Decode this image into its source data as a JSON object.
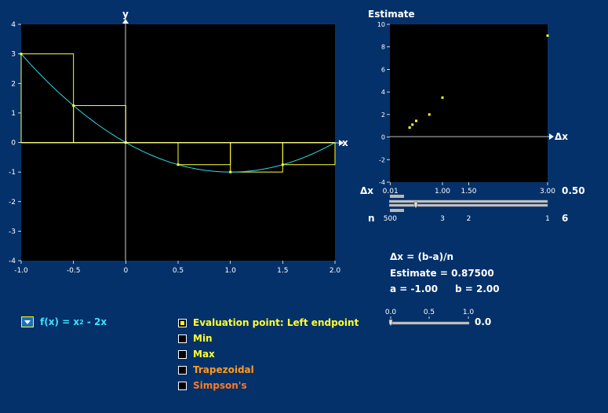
{
  "main_plot": {
    "x_axis_label": "x",
    "y_axis_label": "y",
    "x_ticks": [
      "-1.0",
      "-0.5",
      "0",
      "0.5",
      "1.0",
      "1.5",
      "2.0"
    ],
    "y_ticks": [
      "4",
      "3",
      "2",
      "1",
      "0",
      "-1",
      "-2",
      "-3",
      "-4"
    ],
    "curve_color": "#30d8e8",
    "rect_color": "#ffff30"
  },
  "chart_data": {
    "type": "line",
    "function": "x^2 - 2x",
    "xlim": [
      -1,
      2
    ],
    "ylim": [
      -4,
      4
    ],
    "rectangles": [
      {
        "x0": -1.0,
        "x1": -0.5,
        "height": 3.0
      },
      {
        "x0": -0.5,
        "x1": 0.0,
        "height": 1.25
      },
      {
        "x0": 0.0,
        "x1": 0.5,
        "height": 0.0
      },
      {
        "x0": 0.5,
        "x1": 1.0,
        "height": -0.75
      },
      {
        "x0": 1.0,
        "x1": 1.5,
        "height": -1.0
      },
      {
        "x0": 1.5,
        "x1": 2.0,
        "height": -0.75
      }
    ],
    "sample_points": [
      [
        -1.0,
        3.0
      ],
      [
        -0.5,
        1.25
      ],
      [
        0.0,
        0.0
      ],
      [
        0.5,
        -0.75
      ],
      [
        1.0,
        -1.0
      ],
      [
        1.5,
        -0.75
      ]
    ]
  },
  "estimate_plot": {
    "title": "Estimate",
    "x_axis_label": "Δx",
    "y_ticks": [
      "10",
      "8",
      "6",
      "4",
      "2",
      "0",
      "-2",
      "-4"
    ],
    "x_ticks": [
      "0.01",
      "1.00",
      "1.50",
      "3.00"
    ],
    "n_ticks": [
      "500",
      "3",
      "2",
      "1"
    ],
    "points": [
      [
        0.375,
        0.84375
      ],
      [
        0.429,
        1.102
      ],
      [
        0.5,
        1.4375
      ],
      [
        0.75,
        2.0
      ],
      [
        1.0,
        3.5
      ],
      [
        3.0,
        9.0
      ]
    ]
  },
  "dx_control": {
    "label": "Δx",
    "value": "0.50",
    "fraction": 0.165
  },
  "n_control": {
    "label": "n",
    "value": "6"
  },
  "info": {
    "formula": "Δx = (b-a)/n",
    "estimate": "Estimate = 0.87500",
    "a": "a = -1.00",
    "b": "b = 2.00"
  },
  "t_slider": {
    "ticks": [
      "0.0",
      "0.5",
      "1.0"
    ],
    "value": "0.0",
    "fraction": 0.0
  },
  "function_select": {
    "label": "f(x) = x",
    "sup": "2",
    "rest": " - 2x"
  },
  "options": [
    {
      "label": "Evaluation point: Left endpoint",
      "checked": true,
      "color": "#ffff30"
    },
    {
      "label": "Min",
      "checked": false,
      "color": "#ffff30"
    },
    {
      "label": "Max",
      "checked": false,
      "color": "#ffff30"
    },
    {
      "label": "Trapezoidal",
      "checked": false,
      "color": "#ff9a20"
    },
    {
      "label": "Simpson's",
      "checked": false,
      "color": "#ff7a20"
    }
  ]
}
